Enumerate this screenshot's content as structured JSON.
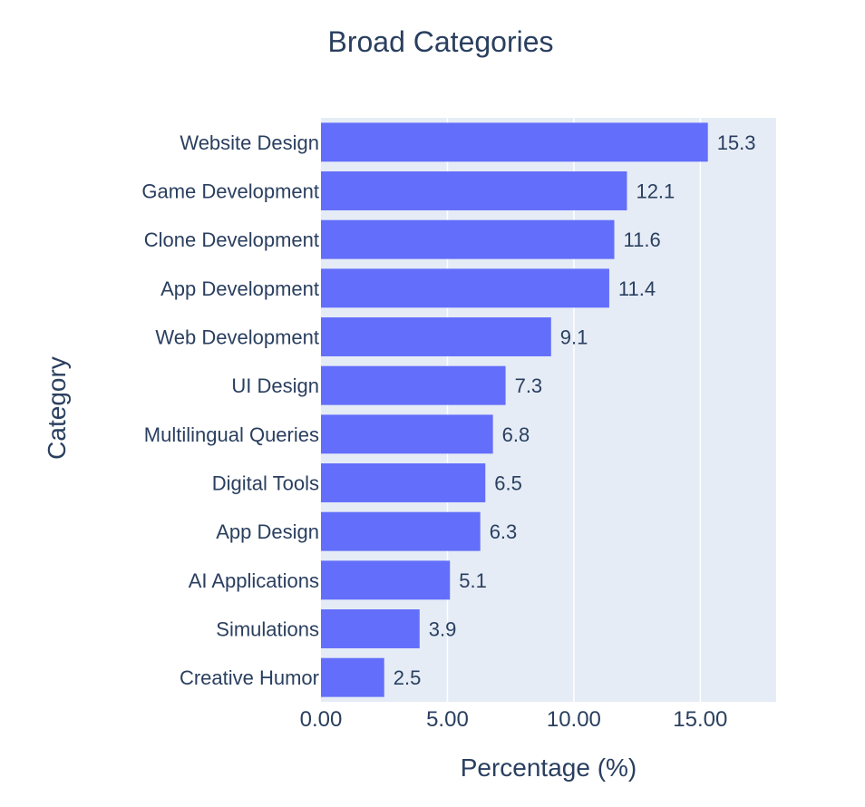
{
  "chart_data": {
    "type": "bar",
    "orientation": "horizontal",
    "title": "Broad Categories",
    "xlabel": "Percentage (%)",
    "ylabel": "Category",
    "xlim": [
      0,
      18
    ],
    "xticks": [
      0,
      5,
      10,
      15
    ],
    "xtick_labels": [
      "0.00",
      "5.00",
      "10.00",
      "15.00"
    ],
    "grid": true,
    "categories": [
      "Website Design",
      "Game Development",
      "Clone Development",
      "App Development",
      "Web Development",
      "UI Design",
      "Multilingual Queries",
      "Digital Tools",
      "App Design",
      "AI Applications",
      "Simulations",
      "Creative Humor"
    ],
    "values": [
      15.3,
      12.1,
      11.6,
      11.4,
      9.1,
      7.3,
      6.8,
      6.5,
      6.3,
      5.1,
      3.9,
      2.5
    ],
    "value_labels": [
      "15.3",
      "12.1",
      "11.6",
      "11.4",
      "9.1",
      "7.3",
      "6.8",
      "6.5",
      "6.3",
      "5.1",
      "3.9",
      "2.5"
    ],
    "colors": {
      "bar": "#636efa",
      "plot_bg": "#e5ecf6",
      "grid": "#ffffff",
      "text": "#2a3f5f"
    }
  }
}
